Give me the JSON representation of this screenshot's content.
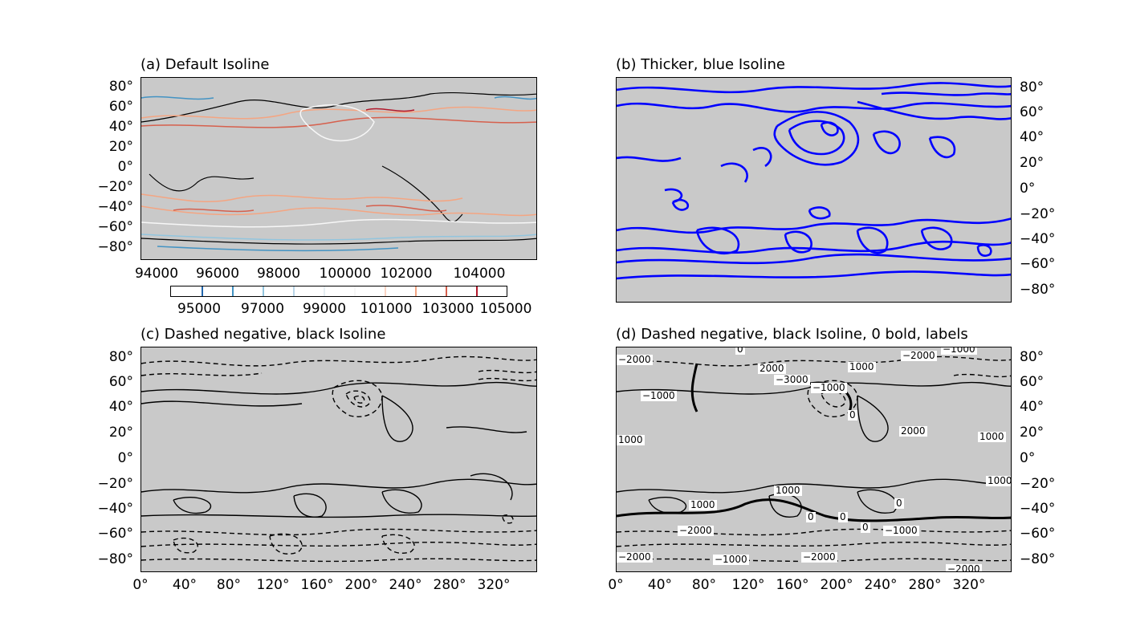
{
  "panels": [
    {
      "id": "a",
      "title": "(a) Default Isoline",
      "lat_side": "left",
      "lon_labels": false
    },
    {
      "id": "b",
      "title": "(b) Thicker, blue Isoline",
      "lat_side": "right",
      "lon_labels": false
    },
    {
      "id": "c",
      "title": "(c) Dashed negative, black Isoline",
      "lat_side": "left",
      "lon_labels": true
    },
    {
      "id": "d",
      "title": "(d) Dashed negative, black Isoline, 0 bold, labels",
      "lat_side": "right",
      "lon_labels": true
    }
  ],
  "lat_ticks": [
    "80°",
    "60°",
    "40°",
    "20°",
    "0°",
    "−20°",
    "−40°",
    "−60°",
    "−80°"
  ],
  "lon_ticks": [
    "0°",
    "40°",
    "80°",
    "120°",
    "160°",
    "200°",
    "240°",
    "280°",
    "320°"
  ],
  "colorbar": {
    "top_labels": [
      "94000",
      "96000",
      "98000",
      "100000",
      "102000",
      "104000"
    ],
    "bottom_labels": [
      "95000",
      "97000",
      "99000",
      "101000",
      "103000",
      "105000"
    ],
    "range": [
      94000,
      105000
    ],
    "levels": [
      {
        "value": 95000,
        "color": "#2166ac"
      },
      {
        "value": 96000,
        "color": "#4393c3"
      },
      {
        "value": 97000,
        "color": "#92c5de"
      },
      {
        "value": 98000,
        "color": "#b9d6e8"
      },
      {
        "value": 99000,
        "color": "#e6eef3"
      },
      {
        "value": 100000,
        "color": "#f7f7f7"
      },
      {
        "value": 101000,
        "color": "#fbd5c3"
      },
      {
        "value": 102000,
        "color": "#f4a582"
      },
      {
        "value": 103000,
        "color": "#d6604d"
      },
      {
        "value": 104000,
        "color": "#b2182b"
      }
    ]
  },
  "contour_labels_d": [
    "0",
    "−2000",
    "−1000",
    "2000",
    "−3000",
    "1000",
    "−1000",
    "0",
    "−2000",
    "−1000",
    "2000",
    "1000",
    "1000",
    "1000",
    "1000",
    "1000",
    "0",
    "0",
    "0",
    "−1000",
    "−2000",
    "−2000",
    "−1000",
    "−2000",
    "−2000",
    "0"
  ],
  "colors": {
    "land_bg": "#c9c9c9",
    "blue_isoline": "#0000ff",
    "black_isoline": "#000000"
  }
}
